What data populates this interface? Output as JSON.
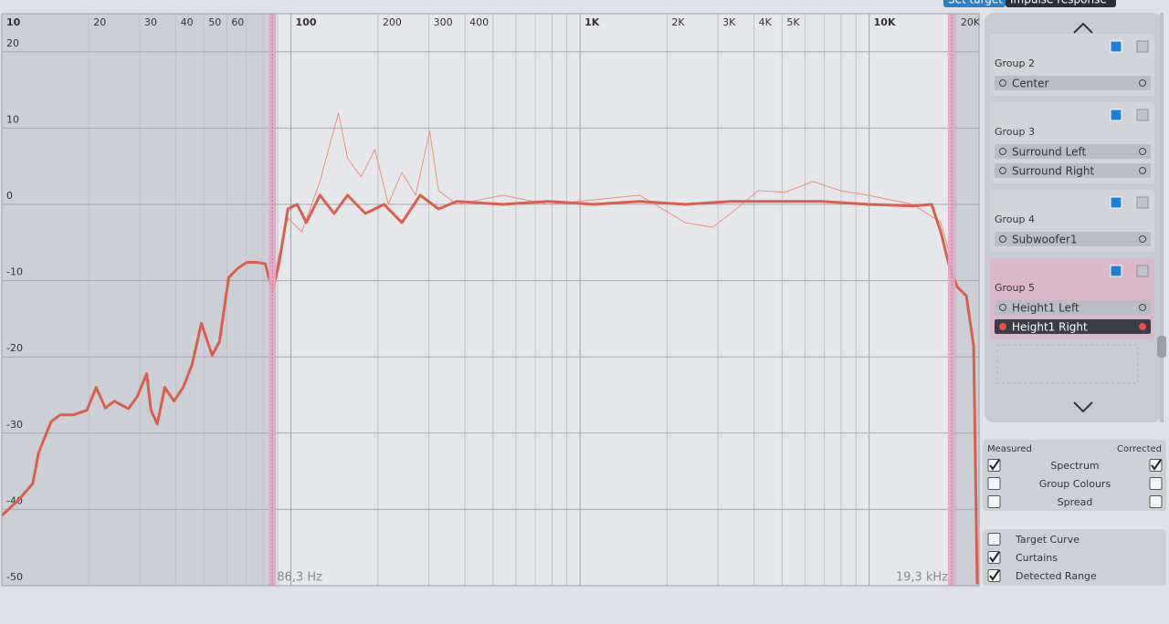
{
  "tabs": [
    "Set target",
    "Impulse response"
  ],
  "plot": {
    "log_x": true,
    "xlim": [
      10,
      24000
    ],
    "ylim": [
      -50,
      25
    ],
    "xticks": [
      10,
      20,
      30,
      40,
      50,
      60,
      100,
      200,
      300,
      400,
      {
        "value": 1000,
        "label": "1K"
      },
      {
        "value": 2000,
        "label": "2K"
      },
      {
        "value": 3000,
        "label": "3K"
      },
      {
        "value": 4000,
        "label": "4K"
      },
      {
        "value": 5000,
        "label": "5K"
      },
      {
        "value": 10000,
        "label": "10K"
      },
      {
        "value": 20000,
        "label": "20K"
      }
    ],
    "minor_xticks": [
      70,
      80,
      90,
      500,
      600,
      700,
      800,
      900,
      6000,
      7000,
      8000,
      9000
    ],
    "yticks": [
      -50,
      -40,
      -30,
      -20,
      -10,
      0,
      10,
      20
    ],
    "grid": true,
    "curtain_color": "#e3a6c6",
    "curtains": [
      {
        "value": 86.3,
        "label": "86,3 Hz"
      },
      {
        "value": 19300,
        "label": "19,3 kHz"
      }
    ],
    "measured": {
      "color": "#eb8f84",
      "x": [
        86.4,
        97.7,
        109,
        126,
        146,
        157,
        175,
        195,
        217,
        242,
        270,
        302,
        324,
        375,
        540,
        776,
        1117,
        1606,
        2311,
        2873,
        3323,
        4132,
        5140,
        6393,
        7951,
        9890,
        14220,
        17690,
        19030
      ],
      "values": [
        -10.2,
        -1.8,
        -3.6,
        3,
        12,
        6,
        3.6,
        7.2,
        0,
        4.2,
        1.2,
        9.6,
        1.8,
        0,
        1.2,
        0,
        0.6,
        1.2,
        -2.4,
        -3,
        -1.2,
        1.8,
        1.6,
        3,
        1.8,
        1.2,
        0,
        -2.4,
        -6.6
      ]
    },
    "corrected": {
      "color": "#d8604f",
      "x": [
        10.0,
        11.4,
        12.8,
        13.4,
        14.8,
        15.9,
        17.7,
        19.7,
        21.2,
        22.8,
        24.5,
        27.4,
        29.4,
        31.7,
        32.8,
        34.5,
        36.6,
        39.4,
        42.4,
        45.5,
        49.0,
        53.4,
        56.6,
        60.9,
        65.5,
        70.4,
        75.8,
        81.5,
        86.4,
        90.9,
        97.7,
        105,
        113,
        126,
        141,
        157,
        181,
        210,
        242,
        280,
        324,
        375,
        540,
        776,
        1117,
        1606,
        2311,
        3323,
        4780,
        6875,
        9890,
        14220,
        16450,
        17690,
        19030,
        20170,
        21690,
        22990,
        23660
      ],
      "values": [
        -40.8,
        -38.8,
        -36.6,
        -32.6,
        -28.5,
        -27.6,
        -27.6,
        -27,
        -24,
        -26.7,
        -25.8,
        -26.8,
        -25.2,
        -22.2,
        -27,
        -28.8,
        -24,
        -25.8,
        -24,
        -21,
        -15.6,
        -19.8,
        -18,
        -9.6,
        -8.4,
        -7.6,
        -7.6,
        -7.8,
        -11.4,
        -7.8,
        -0.6,
        0,
        -2.4,
        1.2,
        -1.2,
        1.2,
        -1.2,
        0,
        -2.4,
        1.2,
        -0.6,
        0.4,
        0,
        0.4,
        0,
        0.4,
        0,
        0.4,
        0.4,
        0.4,
        0,
        -0.2,
        0,
        -3.6,
        -8.4,
        -10.8,
        -12,
        -18.6,
        -49.8
      ]
    }
  },
  "groups": [
    {
      "name": "Group 2",
      "highlighted": false,
      "channels": [
        {
          "name": "Center",
          "selected": false
        }
      ]
    },
    {
      "name": "Group 3",
      "highlighted": false,
      "channels": [
        {
          "name": "Surround Left",
          "selected": false
        },
        {
          "name": "Surround Right",
          "selected": false
        }
      ]
    },
    {
      "name": "Group 4",
      "highlighted": false,
      "channels": [
        {
          "name": "Subwoofer1",
          "selected": false
        }
      ]
    },
    {
      "name": "Group 5",
      "highlighted": true,
      "channels": [
        {
          "name": "Height1 Left",
          "selected": false
        },
        {
          "name": "Height1 Right",
          "selected": true
        }
      ]
    }
  ],
  "view_options": {
    "headers": [
      "Measured",
      "Corrected"
    ],
    "rows": [
      {
        "label": "Spectrum",
        "measured": true,
        "corrected": true
      },
      {
        "label": "Group Colours",
        "measured": false,
        "corrected": false
      },
      {
        "label": "Spread",
        "measured": false,
        "corrected": false
      }
    ]
  },
  "display_options": [
    {
      "label": "Target Curve",
      "checked": false
    },
    {
      "label": "Curtains",
      "checked": true
    },
    {
      "label": "Detected Range",
      "checked": true
    }
  ]
}
